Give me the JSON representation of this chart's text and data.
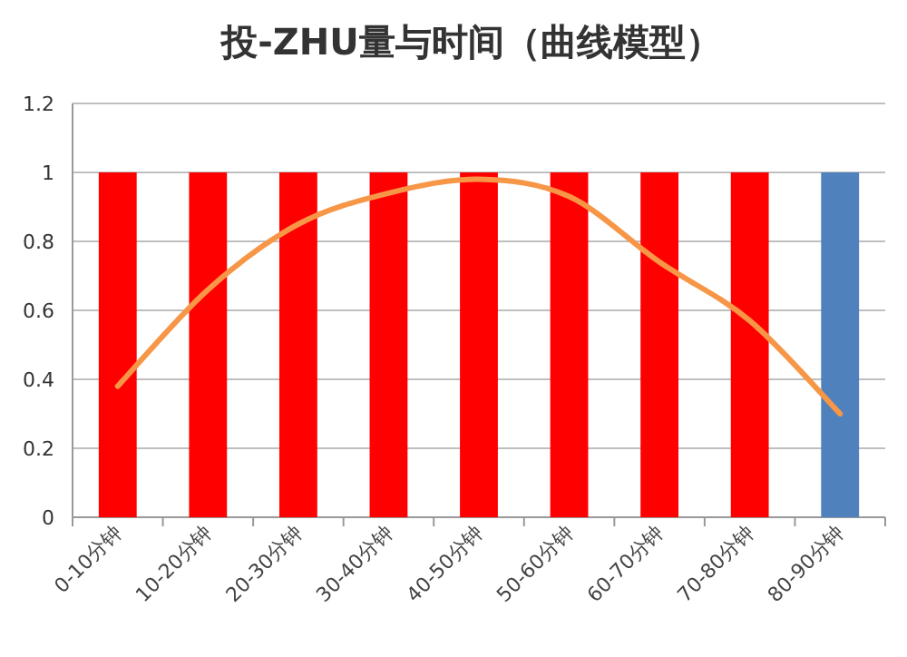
{
  "chart_data": {
    "type": "bar",
    "title": "投-ZHU量与时间（曲线模型）",
    "categories": [
      "0-10分钟",
      "10-20分钟",
      "20-30分钟",
      "30-40分钟",
      "40-50分钟",
      "50-60分钟",
      "60-70分钟",
      "70-80分钟",
      "80-90分钟"
    ],
    "series": [
      {
        "values": [
          1,
          1,
          1,
          1,
          1,
          1,
          1,
          1,
          1
        ],
        "colors": [
          "#ff0000",
          "#ff0000",
          "#ff0000",
          "#ff0000",
          "#ff0000",
          "#ff0000",
          "#ff0000",
          "#ff0000",
          "#4f81bd"
        ]
      },
      {
        "type": "line",
        "color": "#f79646",
        "values": [
          0.38,
          0.66,
          0.85,
          0.94,
          0.98,
          0.93,
          0.74,
          0.57,
          0.3
        ]
      }
    ],
    "ylim": [
      0,
      1.2
    ],
    "yticks": [
      0,
      0.2,
      0.4,
      0.6,
      0.8,
      1,
      1.2
    ],
    "grid": "y"
  }
}
